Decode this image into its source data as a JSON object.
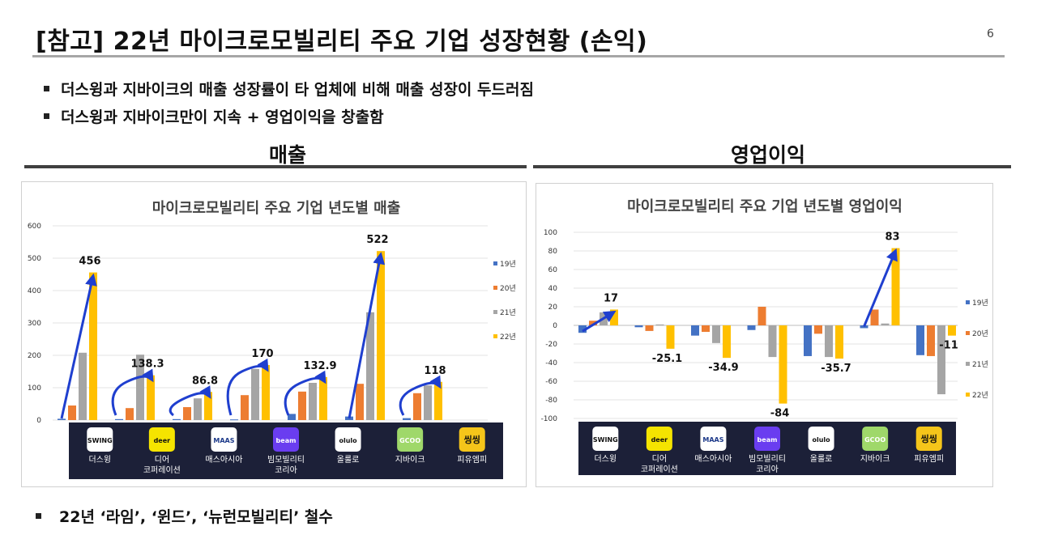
{
  "page": {
    "title": "[참고] 22년 마이크로모빌리티 주요 기업 성장현황 (손익)",
    "page_number": "6",
    "bullets": [
      "더스윙과 지바이크의 매출 성장률이 타 업체에 비해 매출 성장이 두드러짐",
      "더스윙과 지바이크만이 지속 + 영업이익을 창출함"
    ],
    "section_left": "매출",
    "section_right": "영업이익",
    "footer": "22년 ‘라임’, ‘윈드’, ‘뉴런모빌리티’ 철수"
  },
  "companies": [
    {
      "name": "더스윙",
      "logo": "SWING",
      "logo_bg": "#ffffff",
      "logo_fg": "#111111"
    },
    {
      "name": "디어\n코퍼레이션",
      "logo": "deer",
      "logo_bg": "#f5e400",
      "logo_fg": "#111111"
    },
    {
      "name": "매스아시아",
      "logo": "MAAS",
      "logo_bg": "#ffffff",
      "logo_fg": "#1d3a8a"
    },
    {
      "name": "빔모빌리티\n코리아",
      "logo": "beam",
      "logo_bg": "#6a3df0",
      "logo_fg": "#ffffff"
    },
    {
      "name": "올룰로",
      "logo": "olulo",
      "logo_bg": "#ffffff",
      "logo_fg": "#111111"
    },
    {
      "name": "지바이크",
      "logo": "GCOO",
      "logo_bg": "#9fd86a",
      "logo_fg": "#ffffff"
    },
    {
      "name": "피유엠피",
      "logo": "씽씽",
      "logo_bg": "#f5c51a",
      "logo_fg": "#111111"
    }
  ],
  "colors": {
    "y19": "#4472c4",
    "y20": "#ed7d31",
    "y21": "#a5a5a5",
    "y22": "#ffc000",
    "arrow": "#1f3fcf",
    "logo_strip": "#1c2038"
  },
  "chart_data": [
    {
      "type": "bar",
      "title": "마이크로모빌리티 주요 기업 년도별  매출",
      "ylim": [
        0,
        600
      ],
      "yticks": [
        0,
        100,
        200,
        300,
        400,
        500,
        600
      ],
      "grid": true,
      "legend_position": "right",
      "categories": [
        "더스윙",
        "디어 코퍼레이션",
        "매스아시아",
        "빔모빌리티 코리아",
        "올룰로",
        "지바이크",
        "피유엠피"
      ],
      "series": [
        {
          "name": "19년",
          "values": [
            4,
            3,
            3,
            2,
            19,
            11,
            6
          ]
        },
        {
          "name": "20년",
          "values": [
            45,
            37,
            40,
            77,
            88,
            112,
            83
          ]
        },
        {
          "name": "21년",
          "values": [
            208,
            202,
            67,
            158,
            115,
            333,
            107
          ]
        },
        {
          "name": "22년",
          "values": [
            456,
            138.3,
            86.8,
            170,
            132.9,
            522,
            118
          ]
        }
      ],
      "data_labels": [
        "456",
        "138.3",
        "86.8",
        "170",
        "132.9",
        "522",
        "118"
      ]
    },
    {
      "type": "bar",
      "title": "마이크로모빌리티 주요 기업 년도별  영업이익",
      "ylim": [
        -100,
        100
      ],
      "yticks": [
        -100,
        -80,
        -60,
        -40,
        -20,
        0,
        20,
        40,
        60,
        80,
        100
      ],
      "grid": true,
      "legend_position": "right",
      "categories": [
        "더스윙",
        "디어 코퍼레이션",
        "매스아시아",
        "빔모빌리티 코리아",
        "올룰로",
        "지바이크",
        "피유엠피"
      ],
      "series": [
        {
          "name": "19년",
          "values": [
            -8,
            -2,
            -11,
            -5,
            -33,
            -3,
            -32
          ]
        },
        {
          "name": "20년",
          "values": [
            5,
            -6,
            -7,
            20,
            -9,
            17,
            -33
          ]
        },
        {
          "name": "21년",
          "values": [
            14,
            1,
            -19,
            -34,
            -34,
            2,
            -74
          ]
        },
        {
          "name": "22년",
          "values": [
            17,
            -25.1,
            -34.9,
            -84,
            -35.7,
            83,
            -11
          ]
        }
      ],
      "data_labels": [
        "17",
        "-25.1",
        "-34.9",
        "-84",
        "-35.7",
        "83",
        "-11"
      ]
    }
  ]
}
